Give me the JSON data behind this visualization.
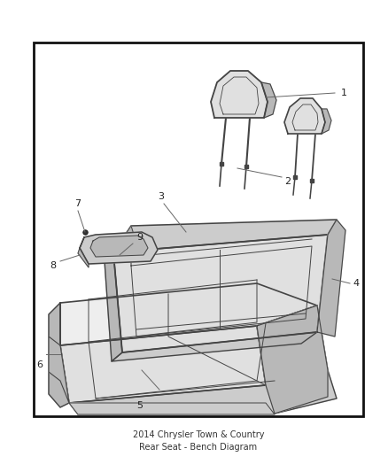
{
  "fig_bg": "#ffffff",
  "border_color": "#111111",
  "line_color": "#444444",
  "fill_main": "#e0e0e0",
  "fill_dark": "#b8b8b8",
  "fill_mid": "#cccccc",
  "fill_light": "#eeeeee",
  "label_fontsize": 8,
  "title_fontsize": 7,
  "title": "2014 Chrysler Town & Country\nRear Seat - Bench Diagram"
}
